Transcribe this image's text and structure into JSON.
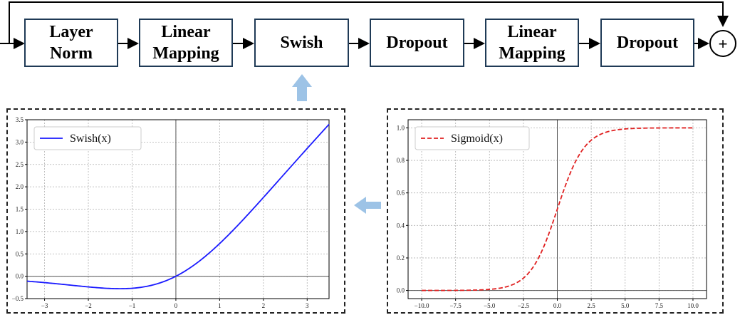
{
  "pipeline": {
    "blocks": [
      {
        "id": "layer-norm",
        "label": "Layer\nNorm"
      },
      {
        "id": "linear-mapping-1",
        "label": "Linear\nMapping"
      },
      {
        "id": "swish",
        "label": "Swish"
      },
      {
        "id": "dropout-1",
        "label": "Dropout"
      },
      {
        "id": "linear-mapping-2",
        "label": "Linear\nMapping"
      },
      {
        "id": "dropout-2",
        "label": "Dropout"
      }
    ],
    "sum_symbol": "+"
  },
  "colors": {
    "box_border": "#1f3a56",
    "arrow_light_blue": "#9dc3e6",
    "swish_line": "#1a1aff",
    "sigmoid_line": "#e02020"
  },
  "chart_data": [
    {
      "id": "swish-plot",
      "type": "line",
      "series": [
        {
          "name": "Swish(x)",
          "function": "x*sigmoid(x)",
          "style": "solid",
          "color": "#1a1aff"
        }
      ],
      "xlim": [
        -3.4,
        3.5
      ],
      "ylim": [
        -0.5,
        3.5
      ],
      "xticks": [
        -3,
        -2,
        -1,
        0,
        1,
        2,
        3
      ],
      "yticks": [
        -0.5,
        0.0,
        0.5,
        1.0,
        1.5,
        2.0,
        2.5,
        3.0,
        3.5
      ],
      "xtick_labels": [
        "−3",
        "−2",
        "−1",
        "0",
        "1",
        "2",
        "3"
      ],
      "ytick_labels": [
        "−0.5",
        "0.0",
        "0.5",
        "1.0",
        "1.5",
        "2.0",
        "2.5",
        "3.0",
        "3.5"
      ],
      "grid": true,
      "legend_position": "top-left"
    },
    {
      "id": "sigmoid-plot",
      "type": "line",
      "series": [
        {
          "name": "Sigmoid(x)",
          "function": "1/(1+exp(-x))",
          "style": "dashed",
          "color": "#e02020"
        }
      ],
      "xlim": [
        -11,
        11
      ],
      "ylim": [
        -0.05,
        1.05
      ],
      "xticks": [
        -10,
        -7.5,
        -5,
        -2.5,
        0,
        2.5,
        5,
        7.5,
        10
      ],
      "yticks": [
        0.0,
        0.2,
        0.4,
        0.6,
        0.8,
        1.0
      ],
      "xtick_labels": [
        "−10.0",
        "−7.5",
        "−5.0",
        "−2.5",
        "0.0",
        "2.5",
        "5.0",
        "7.5",
        "10.0"
      ],
      "ytick_labels": [
        "0.0",
        "0.2",
        "0.4",
        "0.6",
        "0.8",
        "1.0"
      ],
      "grid": true,
      "legend_position": "top-left"
    }
  ]
}
